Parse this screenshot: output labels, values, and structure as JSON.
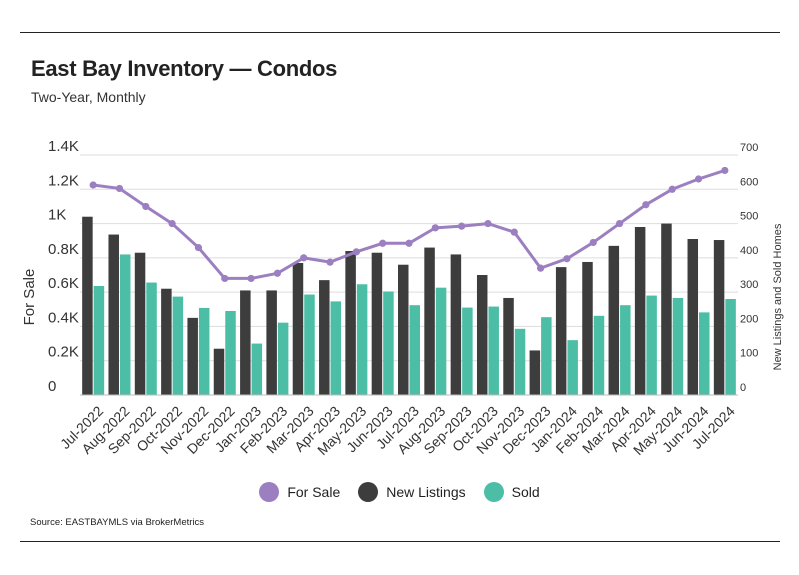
{
  "title": "East Bay Inventory — Condos",
  "subtitle": "Two-Year, Monthly",
  "source": "Source:  EASTBAYMLS via BrokerMetrics",
  "chart_data": {
    "type": "bar",
    "categories": [
      "Jul-2022",
      "Aug-2022",
      "Sep-2022",
      "Oct-2022",
      "Nov-2022",
      "Dec-2022",
      "Jan-2023",
      "Feb-2023",
      "Mar-2023",
      "Apr-2023",
      "May-2023",
      "Jun-2023",
      "Jul-2023",
      "Aug-2023",
      "Sep-2023",
      "Oct-2023",
      "Nov-2023",
      "Dec-2023",
      "Jan-2024",
      "Feb-2024",
      "Mar-2024",
      "Apr-2024",
      "May-2024",
      "Jun-2024",
      "Jul-2024"
    ],
    "series": [
      {
        "name": "For Sale",
        "type": "line",
        "axis": "left",
        "color": "#9b7fc0",
        "values": [
          1225,
          1205,
          1100,
          1000,
          860,
          680,
          680,
          710,
          800,
          775,
          835,
          885,
          885,
          975,
          985,
          1000,
          950,
          740,
          795,
          890,
          1000,
          1110,
          1200,
          1260,
          1310
        ]
      },
      {
        "name": "New Listings",
        "type": "bar",
        "axis": "right",
        "color": "#3d3d3d",
        "values": [
          520,
          468,
          415,
          310,
          225,
          135,
          305,
          305,
          385,
          335,
          420,
          415,
          380,
          430,
          410,
          350,
          283,
          130,
          373,
          388,
          435,
          490,
          500,
          455,
          452
        ]
      },
      {
        "name": "Sold",
        "type": "bar",
        "axis": "right",
        "color": "#4dbea6",
        "values": [
          318,
          410,
          328,
          287,
          254,
          245,
          150,
          211,
          293,
          273,
          323,
          302,
          262,
          313,
          255,
          258,
          193,
          227,
          160,
          231,
          262,
          290,
          283,
          241,
          280
        ]
      }
    ],
    "ylabel": "For Sale",
    "y2label": "New Listings and Sold Homes",
    "ylim": [
      0,
      1400
    ],
    "y2lim": [
      0,
      700
    ],
    "yticks": [
      {
        "value": 1400,
        "label": "1.4K"
      },
      {
        "value": 1200,
        "label": "1.2K"
      },
      {
        "value": 1000,
        "label": "1K"
      },
      {
        "value": 800,
        "label": "0.8K"
      },
      {
        "value": 600,
        "label": "0.6K"
      },
      {
        "value": 400,
        "label": "0.4K"
      },
      {
        "value": 200,
        "label": "0.2K"
      },
      {
        "value": 0,
        "label": "0"
      }
    ],
    "y2ticks": [
      {
        "value": 700,
        "label": "700"
      },
      {
        "value": 600,
        "label": "600"
      },
      {
        "value": 500,
        "label": "500"
      },
      {
        "value": 400,
        "label": "400"
      },
      {
        "value": 300,
        "label": "300"
      },
      {
        "value": 200,
        "label": "200"
      },
      {
        "value": 100,
        "label": "100"
      },
      {
        "value": 0,
        "label": "0"
      }
    ],
    "grid": true,
    "legend_position": "bottom-center"
  },
  "legend": [
    {
      "label": "For Sale",
      "color": "#9b7fc0"
    },
    {
      "label": "New Listings",
      "color": "#3d3d3d"
    },
    {
      "label": "Sold",
      "color": "#4dbea6"
    }
  ]
}
